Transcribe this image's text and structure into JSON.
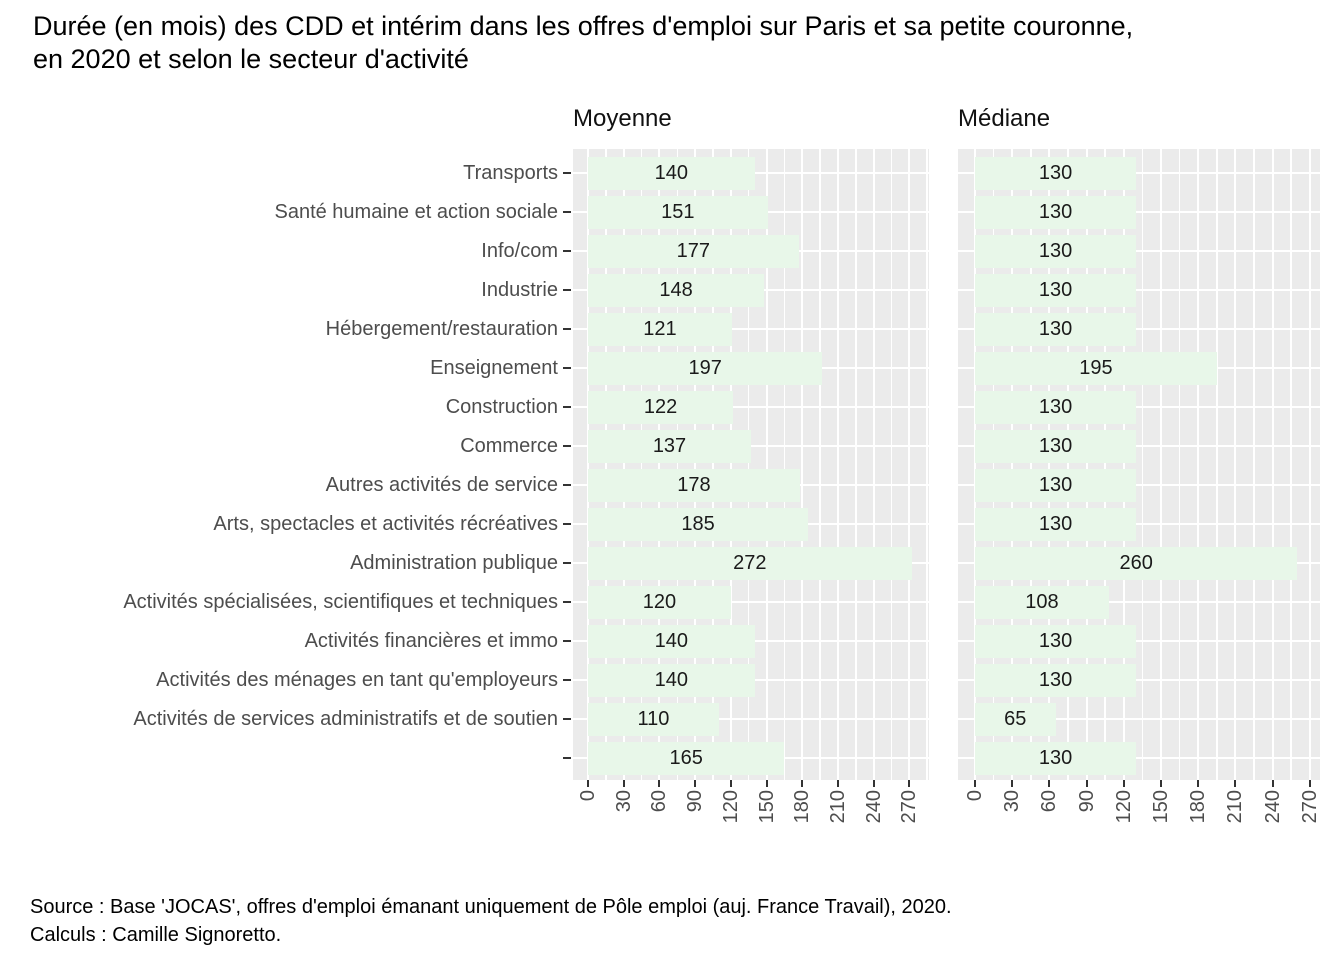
{
  "title": {
    "line1": "Durée (en mois) des CDD et intérim dans les offres d'emploi sur Paris et sa petite couronne,",
    "line2": "en 2020 et selon le secteur d'activité"
  },
  "caption": {
    "line1": "Source : Base 'JOCAS', offres d'emploi émanant uniquement de Pôle emploi (auj. France Travail), 2020.",
    "line2": "Calculs : Camille Signoretto."
  },
  "chart_data": {
    "type": "bar",
    "orientation": "horizontal",
    "title": "Durée (en mois) des CDD et intérim dans les offres d'emploi sur Paris et sa petite couronne, en 2020 et selon le secteur d'activité",
    "xlabel": "",
    "ylabel": "",
    "legend": "none",
    "grid": true,
    "x_ticks": [
      0,
      30,
      60,
      90,
      120,
      150,
      180,
      210,
      240,
      270
    ],
    "xlim": [
      0,
      285
    ],
    "categories": [
      "Transports",
      "Santé humaine et action sociale",
      "Info/com",
      "Industrie",
      "Hébergement/restauration",
      "Enseignement",
      "Construction",
      "Commerce",
      "Autres activités de service",
      "Arts, spectacles et activités récréatives",
      "Administration publique",
      "Activités spécialisées, scientifiques et techniques",
      "Activités financières et immo",
      "Activités des ménages en tant qu'employeurs",
      "Activités de services administratifs et de soutien",
      ""
    ],
    "facets": [
      {
        "name": "Moyenne",
        "values": [
          140,
          151,
          177,
          148,
          121,
          197,
          122,
          137,
          178,
          185,
          272,
          120,
          140,
          140,
          110,
          165
        ]
      },
      {
        "name": "Médiane",
        "values": [
          130,
          130,
          130,
          130,
          130,
          195,
          130,
          130,
          130,
          130,
          260,
          108,
          130,
          130,
          65,
          130
        ]
      }
    ],
    "colors": {
      "bar_fill": "#E8F7E9",
      "panel_bg": "#EBEBEB",
      "gridline": "#FFFFFF",
      "axis_text": "#4D4D4D",
      "tick_mark": "#333333",
      "value_text": "#1A1A1A"
    }
  }
}
